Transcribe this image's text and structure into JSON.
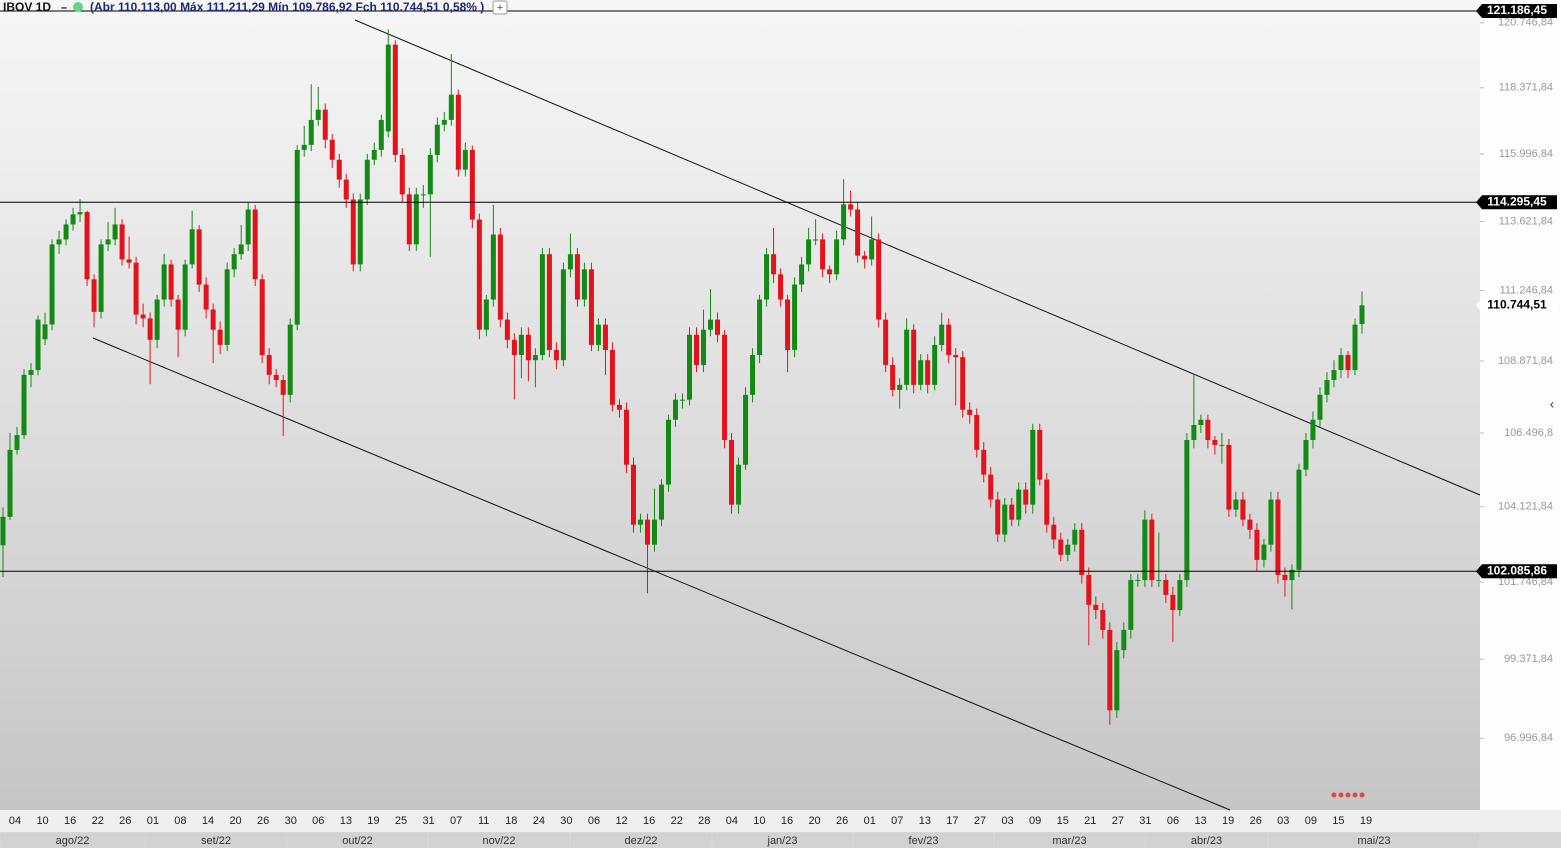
{
  "chart_data": {
    "type": "candlestick",
    "header": {
      "symbol": "IBOV 1D",
      "details": "(Abr 110.113,00 Máx 111.211,29 Mín 109.786,92 Fch 110.744,51 0,58% )"
    },
    "log_scale": true,
    "ylim": [
      94890,
      121594
    ],
    "yticks": [
      {
        "value": 120746.84,
        "label": "120.746,84"
      },
      {
        "value": 118371.84,
        "label": "118.371,84"
      },
      {
        "value": 115996.84,
        "label": "115.996,84"
      },
      {
        "value": 113621.84,
        "label": "113.621,84"
      },
      {
        "value": 111246.84,
        "label": "111.246,84"
      },
      {
        "value": 108871.84,
        "label": "108.871,84"
      },
      {
        "value": 106496.84,
        "label": "106.496,8"
      },
      {
        "value": 104121.84,
        "label": "104.121,84"
      },
      {
        "value": 101746.84,
        "label": "101.746,84"
      },
      {
        "value": 99371.84,
        "label": "99.371,84"
      },
      {
        "value": 96996.84,
        "label": "96.996,84"
      }
    ],
    "levels": [
      {
        "value": 121186.45,
        "label": "121.186,45"
      },
      {
        "value": 114295.45,
        "label": "114.295,45"
      },
      {
        "value": 102085.86,
        "label": "102.085,86"
      }
    ],
    "last_price": {
      "value": 110744.51,
      "label": "110.744,51"
    },
    "up_color": "#138a13",
    "down_color": "#e3121b",
    "x_labels": [
      "04",
      "10",
      "16",
      "22",
      "26",
      "01",
      "08",
      "14",
      "20",
      "26",
      "30",
      "06",
      "13",
      "19",
      "25",
      "31",
      "07",
      "11",
      "18",
      "24",
      "30",
      "06",
      "12",
      "16",
      "22",
      "28",
      "04",
      "10",
      "16",
      "20",
      "26",
      "01",
      "07",
      "13",
      "17",
      "27",
      "03",
      "09",
      "15",
      "21",
      "27",
      "31",
      "06",
      "13",
      "19",
      "26",
      "03",
      "09",
      "15",
      "19"
    ],
    "months": [
      "ago/22",
      "set/22",
      "out/22",
      "nov/22",
      "dez/22",
      "jan/23",
      "fev/23",
      "mar/23",
      "abr/23",
      "mai/23"
    ],
    "candles": [
      [
        102900,
        104100,
        101900,
        103800
      ],
      [
        103800,
        106500,
        103700,
        105950
      ],
      [
        105950,
        106700,
        105800,
        106430
      ],
      [
        106430,
        108600,
        106300,
        108410
      ],
      [
        108410,
        108800,
        108000,
        108570
      ],
      [
        108570,
        110400,
        108400,
        110260
      ],
      [
        109600,
        110500,
        109400,
        110100
      ],
      [
        110100,
        113000,
        109900,
        112830
      ],
      [
        112830,
        113300,
        112500,
        113000
      ],
      [
        113000,
        113700,
        112800,
        113520
      ],
      [
        113520,
        114100,
        113300,
        113870
      ],
      [
        113870,
        114400,
        113600,
        113950
      ],
      [
        113950,
        114000,
        111400,
        111630
      ],
      [
        111630,
        111800,
        110000,
        110520
      ],
      [
        110520,
        113000,
        110300,
        112830
      ],
      [
        112830,
        113600,
        112600,
        113000
      ],
      [
        113000,
        114100,
        112800,
        113520
      ],
      [
        113520,
        113700,
        112100,
        112310
      ],
      [
        112310,
        113100,
        112000,
        112200
      ],
      [
        112200,
        112400,
        110100,
        110430
      ],
      [
        110430,
        110800,
        110000,
        110300
      ],
      [
        110300,
        110500,
        108100,
        109580
      ],
      [
        109580,
        111100,
        109300,
        110940
      ],
      [
        110940,
        112500,
        110700,
        112140
      ],
      [
        112140,
        112300,
        110700,
        110940
      ],
      [
        110940,
        111100,
        109000,
        109920
      ],
      [
        109920,
        112300,
        109700,
        112140
      ],
      [
        112140,
        114000,
        112000,
        113350
      ],
      [
        113350,
        113500,
        111200,
        111450
      ],
      [
        111450,
        111700,
        110300,
        110600
      ],
      [
        110600,
        110800,
        108800,
        109920
      ],
      [
        109920,
        110200,
        109100,
        109410
      ],
      [
        109410,
        112200,
        109200,
        111970
      ],
      [
        111970,
        112700,
        111700,
        112490
      ],
      [
        112490,
        113500,
        112300,
        112830
      ],
      [
        112830,
        114300,
        112600,
        114040
      ],
      [
        114040,
        114200,
        111400,
        111630
      ],
      [
        111630,
        111800,
        108800,
        109070
      ],
      [
        109070,
        109300,
        108100,
        108410
      ],
      [
        108410,
        108600,
        108000,
        108240
      ],
      [
        108240,
        108400,
        106400,
        107750
      ],
      [
        107750,
        110300,
        107500,
        110090
      ],
      [
        110090,
        116300,
        109900,
        116140
      ],
      [
        116140,
        117000,
        115900,
        116320
      ],
      [
        116320,
        118500,
        116100,
        117210
      ],
      [
        117210,
        118400,
        117000,
        117580
      ],
      [
        117580,
        117800,
        116200,
        116500
      ],
      [
        116500,
        116700,
        115500,
        115790
      ],
      [
        115790,
        116000,
        114800,
        115090
      ],
      [
        115090,
        115300,
        114100,
        114390
      ],
      [
        114390,
        114600,
        111900,
        112140
      ],
      [
        112140,
        114600,
        111900,
        114390
      ],
      [
        114390,
        116000,
        114200,
        115790
      ],
      [
        115790,
        116400,
        115600,
        116140
      ],
      [
        116140,
        117400,
        115900,
        117210
      ],
      [
        116800,
        120500,
        116600,
        119944
      ],
      [
        119944,
        120100,
        115700,
        115962
      ],
      [
        115962,
        116200,
        114300,
        114570
      ],
      [
        114570,
        114800,
        112600,
        112830
      ],
      [
        112830,
        114800,
        112600,
        114570
      ],
      [
        114570,
        114900,
        114100,
        114570
      ],
      [
        114570,
        116200,
        112400,
        115962
      ],
      [
        115962,
        117300,
        115700,
        117040
      ],
      [
        117040,
        117500,
        116800,
        117210
      ],
      [
        117210,
        119600,
        117000,
        118120
      ],
      [
        118120,
        118300,
        115200,
        115440
      ],
      [
        115440,
        116400,
        115200,
        116140
      ],
      [
        116140,
        116300,
        113400,
        113690
      ],
      [
        113690,
        113900,
        109600,
        109920
      ],
      [
        109920,
        111100,
        109700,
        110940
      ],
      [
        110940,
        114200,
        110700,
        113170
      ],
      [
        113170,
        113400,
        110000,
        110260
      ],
      [
        110260,
        110500,
        109300,
        109580
      ],
      [
        109580,
        109800,
        107600,
        109070
      ],
      [
        109070,
        110000,
        108300,
        109750
      ],
      [
        109750,
        110000,
        108200,
        108900
      ],
      [
        108900,
        109300,
        108000,
        109070
      ],
      [
        109070,
        112700,
        108900,
        112490
      ],
      [
        112490,
        112700,
        109000,
        109240
      ],
      [
        109240,
        109500,
        108600,
        108900
      ],
      [
        108900,
        112200,
        108700,
        111970
      ],
      [
        111970,
        113200,
        111700,
        112490
      ],
      [
        112490,
        112700,
        110700,
        110940
      ],
      [
        110940,
        112200,
        110700,
        111970
      ],
      [
        111970,
        112200,
        109200,
        109410
      ],
      [
        109410,
        110300,
        109200,
        110090
      ],
      [
        110090,
        110300,
        108400,
        109240
      ],
      [
        109240,
        109500,
        107200,
        107420
      ],
      [
        107420,
        107600,
        107000,
        107260
      ],
      [
        107260,
        107500,
        105200,
        105470
      ],
      [
        105470,
        105700,
        103300,
        103550
      ],
      [
        103550,
        103900,
        103300,
        103710
      ],
      [
        103710,
        103900,
        101400,
        102920
      ],
      [
        102920,
        104700,
        102700,
        103710
      ],
      [
        103710,
        105000,
        103500,
        104830
      ],
      [
        104830,
        107100,
        104600,
        106930
      ],
      [
        106930,
        107800,
        106700,
        107590
      ],
      [
        107590,
        107800,
        107300,
        107590
      ],
      [
        107590,
        110000,
        107400,
        109750
      ],
      [
        109750,
        110000,
        108500,
        108740
      ],
      [
        108740,
        110600,
        108500,
        109920
      ],
      [
        109920,
        111300,
        109700,
        110260
      ],
      [
        110260,
        110500,
        109500,
        109750
      ],
      [
        109750,
        109900,
        106000,
        106270
      ],
      [
        106270,
        106500,
        103900,
        104190
      ],
      [
        104190,
        105700,
        103900,
        105470
      ],
      [
        105470,
        108000,
        105300,
        107750
      ],
      [
        107750,
        109300,
        107500,
        109070
      ],
      [
        109070,
        111100,
        108800,
        110940
      ],
      [
        110940,
        112700,
        110700,
        112490
      ],
      [
        112490,
        113400,
        111500,
        111800
      ],
      [
        111800,
        112000,
        110700,
        110940
      ],
      [
        110940,
        111100,
        108500,
        109240
      ],
      [
        109240,
        111700,
        109000,
        111450
      ],
      [
        111450,
        112400,
        111200,
        112140
      ],
      [
        112140,
        113400,
        111900,
        113000
      ],
      [
        113000,
        113700,
        112800,
        113000
      ],
      [
        113000,
        113200,
        111700,
        111970
      ],
      [
        111970,
        112100,
        111500,
        111800
      ],
      [
        111800,
        113300,
        111600,
        113000
      ],
      [
        113000,
        115100,
        112800,
        114220
      ],
      [
        114220,
        114700,
        113800,
        114040
      ],
      [
        114040,
        114300,
        112200,
        112440
      ],
      [
        112440,
        112600,
        112000,
        112310
      ],
      [
        112310,
        113800,
        112100,
        113000
      ],
      [
        113000,
        113200,
        110000,
        110260
      ],
      [
        110260,
        110500,
        108500,
        108740
      ],
      [
        108740,
        109000,
        107700,
        107910
      ],
      [
        107910,
        108300,
        107300,
        108080
      ],
      [
        108080,
        110300,
        107900,
        109920
      ],
      [
        109920,
        110100,
        107800,
        108080
      ],
      [
        108080,
        109100,
        107900,
        108900
      ],
      [
        108900,
        109100,
        107800,
        108080
      ],
      [
        108080,
        109700,
        107900,
        109410
      ],
      [
        109410,
        110500,
        109200,
        110090
      ],
      [
        110090,
        110300,
        108800,
        109070
      ],
      [
        109070,
        109300,
        107400,
        109000
      ],
      [
        109000,
        109200,
        107000,
        107260
      ],
      [
        107260,
        107500,
        106800,
        107090
      ],
      [
        107090,
        107300,
        105700,
        105950
      ],
      [
        105950,
        106200,
        104900,
        105150
      ],
      [
        105150,
        105400,
        104100,
        104350
      ],
      [
        104350,
        104600,
        103000,
        103240
      ],
      [
        103240,
        104400,
        103000,
        104190
      ],
      [
        104190,
        104400,
        103500,
        103710
      ],
      [
        103710,
        104900,
        103500,
        104670
      ],
      [
        104670,
        104900,
        103900,
        104190
      ],
      [
        104190,
        106800,
        103900,
        106600
      ],
      [
        106600,
        106800,
        104800,
        104990
      ],
      [
        104990,
        105200,
        103300,
        103550
      ],
      [
        103550,
        103800,
        102800,
        103080
      ],
      [
        103080,
        103300,
        102400,
        102600
      ],
      [
        102600,
        103100,
        102400,
        102920
      ],
      [
        102920,
        103600,
        102700,
        103390
      ],
      [
        103390,
        103600,
        101700,
        101970
      ],
      [
        101970,
        102200,
        99800,
        101040
      ],
      [
        101040,
        101300,
        100600,
        100880
      ],
      [
        100880,
        101100,
        100000,
        100270
      ],
      [
        100270,
        100500,
        97400,
        97830
      ],
      [
        97830,
        99900,
        97600,
        99650
      ],
      [
        99650,
        100500,
        99400,
        100270
      ],
      [
        100270,
        102000,
        100000,
        101810
      ],
      [
        101810,
        102000,
        101600,
        101810
      ],
      [
        101810,
        104000,
        101600,
        103710
      ],
      [
        103710,
        103900,
        101600,
        101810
      ],
      [
        101810,
        103300,
        101600,
        101810
      ],
      [
        101810,
        102000,
        101100,
        101350
      ],
      [
        101350,
        101600,
        99900,
        100880
      ],
      [
        100880,
        102000,
        100700,
        101810
      ],
      [
        101810,
        106500,
        101600,
        106270
      ],
      [
        106270,
        108400,
        106000,
        106760
      ],
      [
        106760,
        107100,
        106500,
        106930
      ],
      [
        106930,
        107100,
        106000,
        106270
      ],
      [
        106270,
        106400,
        105800,
        106110
      ],
      [
        106110,
        106500,
        105500,
        106110
      ],
      [
        106110,
        106300,
        103800,
        104030
      ],
      [
        104030,
        104600,
        103800,
        104350
      ],
      [
        104350,
        104600,
        103500,
        103710
      ],
      [
        103710,
        103900,
        103100,
        103390
      ],
      [
        103390,
        103600,
        102100,
        102440
      ],
      [
        102440,
        103100,
        102200,
        102920
      ],
      [
        102920,
        104600,
        102700,
        104350
      ],
      [
        104350,
        104600,
        101700,
        101970
      ],
      [
        101970,
        102200,
        101300,
        101810
      ],
      [
        101810,
        102300,
        100900,
        102130
      ],
      [
        102130,
        105500,
        101900,
        105310
      ],
      [
        105310,
        106500,
        105100,
        106270
      ],
      [
        106270,
        107200,
        106000,
        106930
      ],
      [
        106930,
        108000,
        106700,
        107750
      ],
      [
        107750,
        108500,
        107500,
        108240
      ],
      [
        108240,
        108900,
        108000,
        108570
      ],
      [
        108570,
        109300,
        108300,
        109070
      ],
      [
        109070,
        109200,
        108300,
        108570
      ],
      [
        108570,
        110300,
        108400,
        110090
      ],
      [
        110113,
        111211.29,
        109786.92,
        110744.51
      ]
    ]
  }
}
